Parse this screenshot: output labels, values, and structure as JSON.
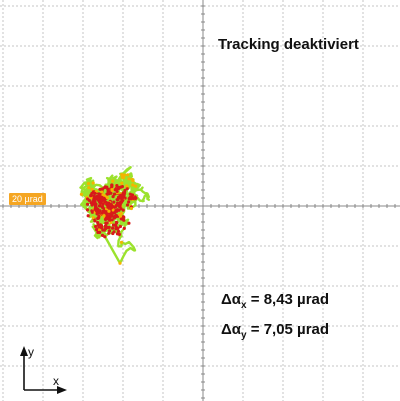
{
  "chart_data": {
    "type": "scatter",
    "title": "Tracking deaktiviert",
    "xlabel": "x",
    "ylabel": "y",
    "grid": true,
    "scale_marker": "20 µrad",
    "stats": [
      {
        "symbol": "Δα",
        "axis": "x",
        "value": "8,43 µrad"
      },
      {
        "symbol": "Δα",
        "axis": "y",
        "value": "7,05 µrad"
      }
    ],
    "series_colors": {
      "trace": "#9be22d",
      "dense_points": "#d81a1a",
      "medium_points": "#f4b400"
    }
  }
}
